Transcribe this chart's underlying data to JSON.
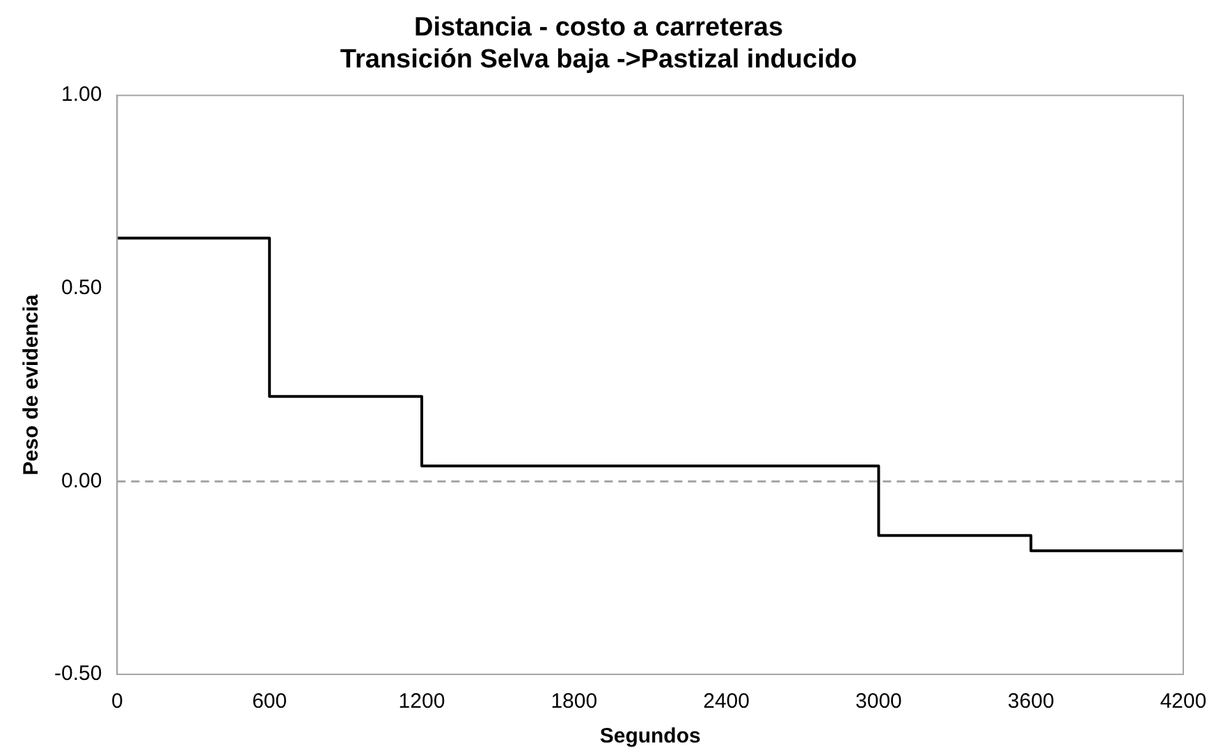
{
  "chart_data": {
    "type": "step",
    "title": "Distancia - costo a carreteras",
    "subtitle": "Transición Selva baja ->Pastizal inducido",
    "xlabel": "Segundos",
    "ylabel": "Peso de evidencia",
    "x": [
      0,
      600,
      1200,
      3000,
      3600,
      4200
    ],
    "series": [
      {
        "color": "#000000",
        "values": [
          0.63,
          0.22,
          0.04,
          -0.14,
          -0.18,
          -0.18
        ]
      }
    ],
    "xlim": [
      0,
      4200
    ],
    "xticks": [
      0,
      600,
      1200,
      1800,
      2400,
      3000,
      3600,
      4200
    ],
    "ylim": [
      -0.5,
      1
    ],
    "yticks": [
      {
        "value": -0.5,
        "label": "-0.50"
      },
      {
        "value": 0,
        "label": "0.00"
      },
      {
        "value": 0.5,
        "label": "0.50"
      },
      {
        "value": 1,
        "label": "1.00"
      }
    ],
    "ref_lines": [
      {
        "axis": "y",
        "value": 0,
        "color": "#a6a6a6",
        "line_style": "dashed"
      }
    ],
    "grid": false,
    "legend": false,
    "marker": "none"
  }
}
